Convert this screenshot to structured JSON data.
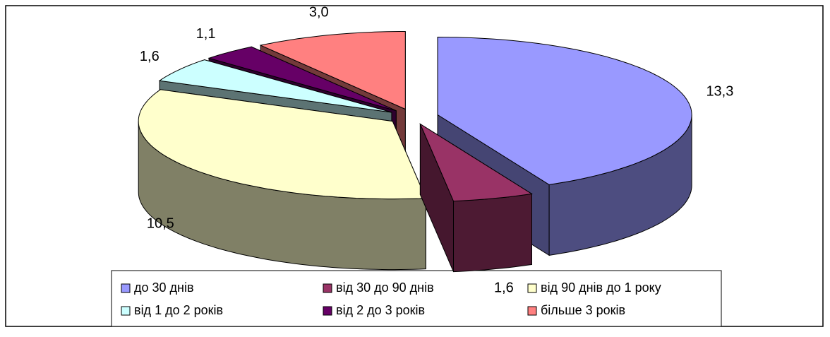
{
  "chart_data": {
    "type": "pie3d",
    "categories": [
      "до 30 днів",
      "від 30 до 90 днів",
      "від 90 днів до 1 року",
      "від 1 до 2 років",
      "від 2 до 3 років",
      "більше 3 років"
    ],
    "values": [
      13.3,
      1.6,
      10.5,
      1.6,
      1.1,
      3.0
    ],
    "value_labels": [
      "13,3",
      "1,6",
      "10,5",
      "1,6",
      "1,1",
      "3,0"
    ],
    "colors": [
      "#9999ff",
      "#993366",
      "#ffffcc",
      "#ccffff",
      "#660066",
      "#ff8080"
    ],
    "legend": "bottom"
  }
}
